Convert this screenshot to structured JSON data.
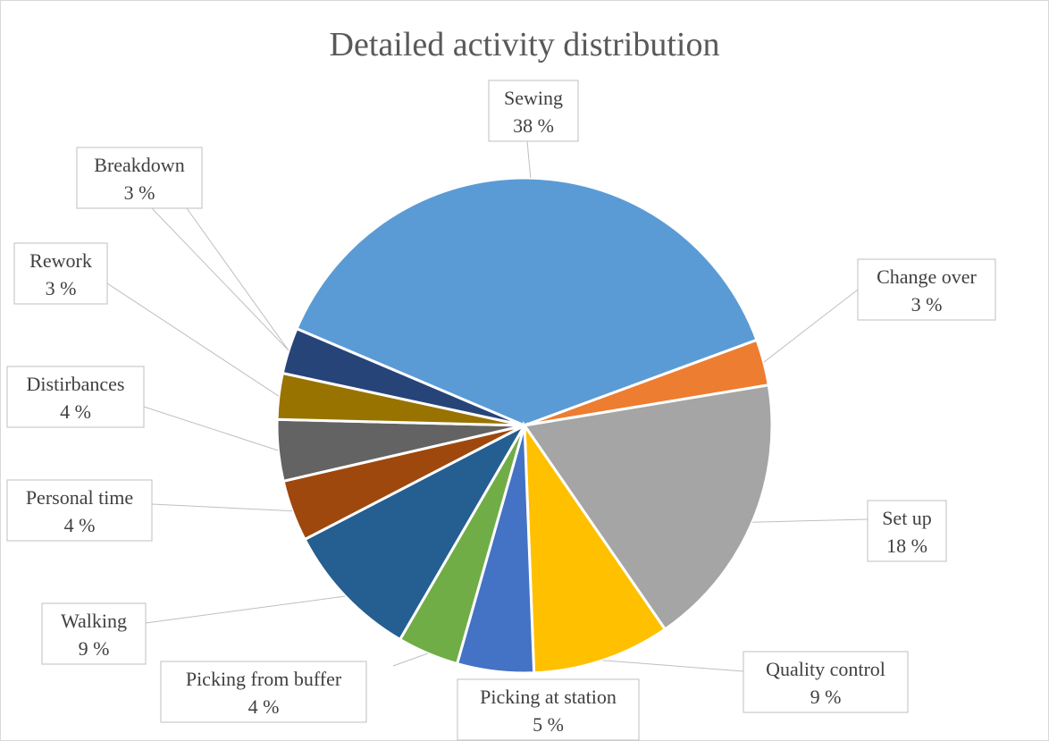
{
  "chart_data": {
    "type": "pie",
    "title": "Detailed activity distribution",
    "unit": "%",
    "slices": [
      {
        "label": "Sewing",
        "value": 38,
        "display": "38 %",
        "color": "#5B9BD5"
      },
      {
        "label": "Change over",
        "value": 3,
        "display": "3 %",
        "color": "#ED7D31"
      },
      {
        "label": "Set up",
        "value": 18,
        "display": "18 %",
        "color": "#A5A5A5"
      },
      {
        "label": "Quality control",
        "value": 9,
        "display": "9 %",
        "color": "#FFC000"
      },
      {
        "label": "Picking at station",
        "value": 5,
        "display": "5 %",
        "color": "#4472C4"
      },
      {
        "label": "Picking from buffer",
        "value": 4,
        "display": "4 %",
        "color": "#70AD47"
      },
      {
        "label": "Walking",
        "value": 9,
        "display": "9 %",
        "color": "#255E91"
      },
      {
        "label": "Personal time",
        "value": 4,
        "display": "4 %",
        "color": "#9E480E"
      },
      {
        "label": "Distirbances",
        "value": 4,
        "display": "4 %",
        "color": "#636363"
      },
      {
        "label": "Rework",
        "value": 3,
        "display": "3 %",
        "color": "#997300"
      },
      {
        "label": "Breakdown",
        "value": 3,
        "display": "3 %",
        "color": "#264478"
      }
    ],
    "legend": "none",
    "data_labels": "category name and percentage in callout boxes with leader lines"
  }
}
